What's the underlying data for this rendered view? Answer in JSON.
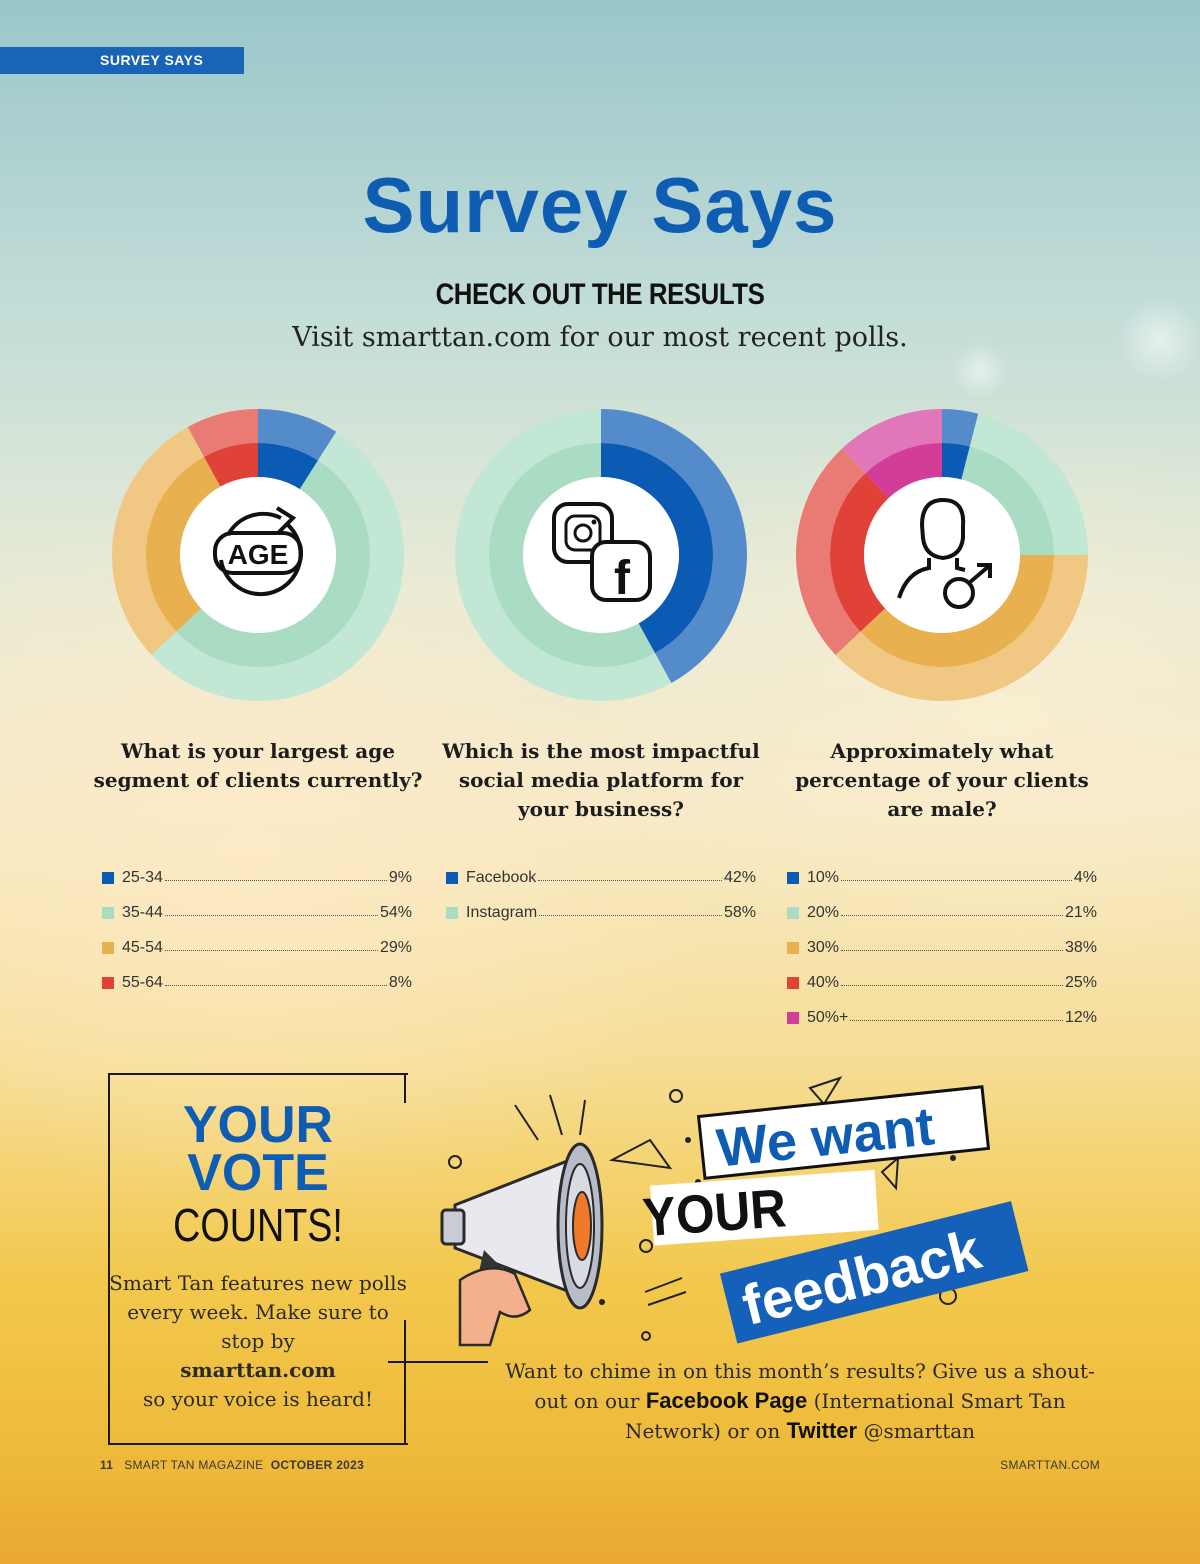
{
  "section_tag": "SURVEY SAYS",
  "title": "Survey Says",
  "subtitle": "CHECK OUT THE RESULTS",
  "visit_text": "Visit smarttan.com for our most recent polls.",
  "colors": {
    "brand_blue": "#0e5db3",
    "tag_blue": "#1a64b8"
  },
  "chart_data": [
    {
      "type": "pie",
      "variant": "donut",
      "icon": "age-icon",
      "title": "What is your largest age segment of clients currently?",
      "categories": [
        "25-34",
        "35-44",
        "45-54",
        "55-64"
      ],
      "values": [
        9,
        54,
        29,
        8
      ],
      "value_labels": [
        "9%",
        "54%",
        "29%",
        "8%"
      ],
      "colors": [
        "#0b5bb4",
        "#a9dcc3",
        "#e9b04f",
        "#e04238"
      ]
    },
    {
      "type": "pie",
      "variant": "donut",
      "icon": "instagram-facebook-icon",
      "title": "Which is the most impactful social media platform for your business?",
      "categories": [
        "Facebook",
        "Instagram"
      ],
      "values": [
        42,
        58
      ],
      "value_labels": [
        "42%",
        "58%"
      ],
      "colors": [
        "#0b5bb4",
        "#a9dcc3"
      ]
    },
    {
      "type": "pie",
      "variant": "donut",
      "icon": "male-client-icon",
      "title": "Approximately what percentage of your clients are male?",
      "categories": [
        "10%",
        "20%",
        "30%",
        "40%",
        "50%+"
      ],
      "values": [
        4,
        21,
        38,
        25,
        12
      ],
      "value_labels": [
        "4%",
        "21%",
        "38%",
        "25%",
        "12%"
      ],
      "colors": [
        "#0b5bb4",
        "#a9dcc3",
        "#e9b04f",
        "#e04238",
        "#d43c9a"
      ]
    }
  ],
  "vote": {
    "line1": "YOUR",
    "line2": "VOTE",
    "line3": "COUNTS!",
    "text_pre": "Smart Tan features new polls every week. Make sure to stop by",
    "link": "smarttan.com",
    "text_post": "so your voice is heard!"
  },
  "feedback_banner": {
    "line1": "We want",
    "line2": "YOUR",
    "line3": "feedback"
  },
  "feedback": {
    "pre": "Want to chime in on this month’s results? Give us a shout-out on our",
    "facebook": "Facebook Page",
    "mid": "(International Smart Tan Network) or on",
    "twitter": "Twitter",
    "handle": "@smarttan"
  },
  "footer": {
    "page": "11",
    "magazine": "SMART TAN MAGAZINE",
    "issue": "OCTOBER 2023",
    "site": "SMARTTAN.COM"
  }
}
